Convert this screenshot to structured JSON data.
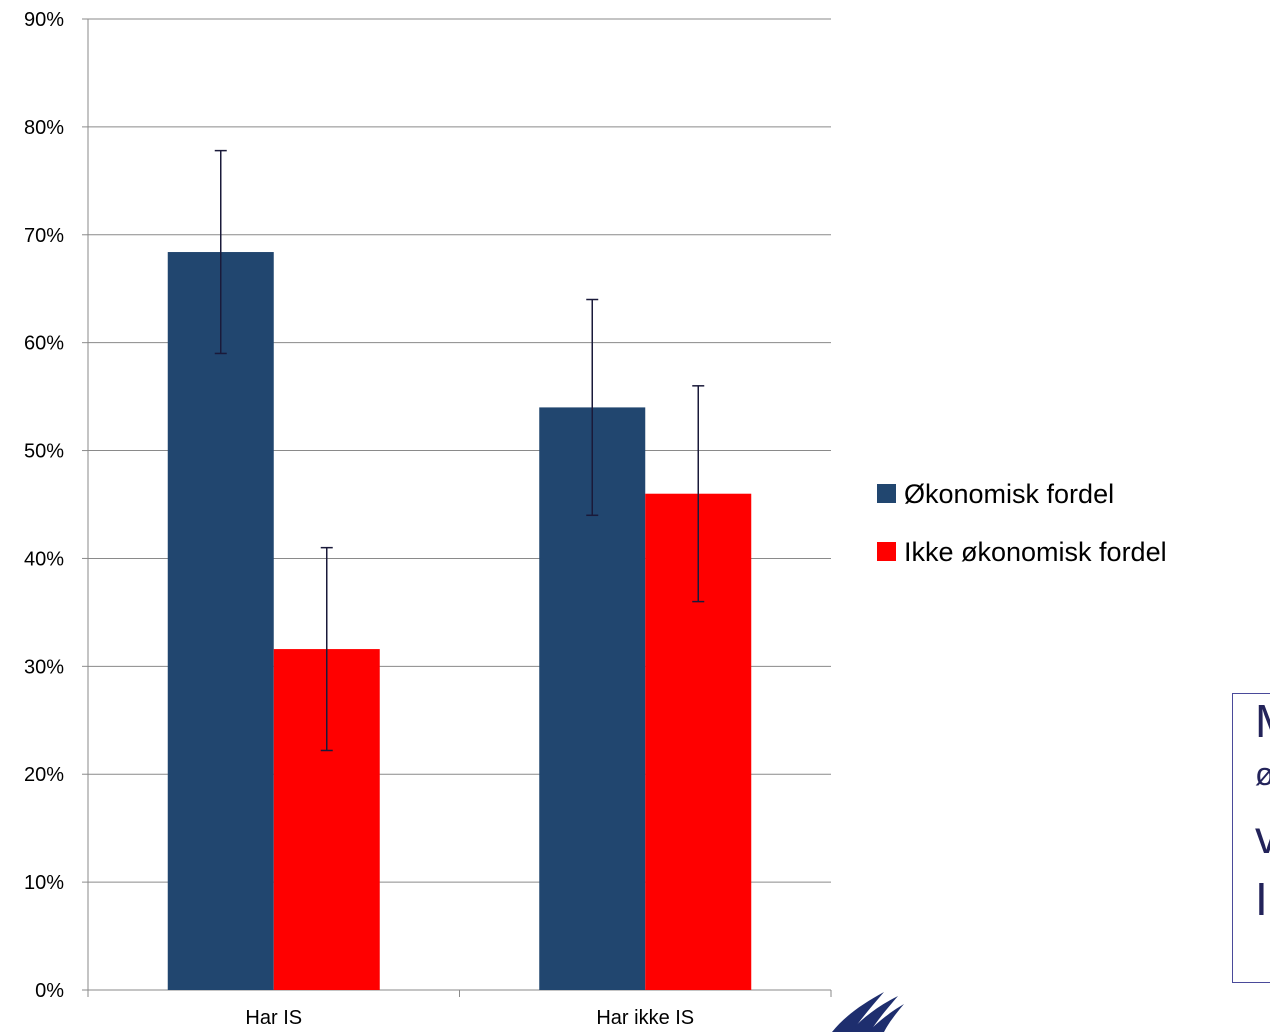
{
  "chart_data": {
    "type": "bar",
    "categories": [
      "Har IS",
      "Har ikke IS"
    ],
    "series": [
      {
        "name": "Økonomisk fordel",
        "color": "#21466f",
        "values": [
          68.4,
          54.0
        ],
        "error_low": [
          59.0,
          44.0
        ],
        "error_high": [
          77.8,
          64.0
        ]
      },
      {
        "name": "Ikke økonomisk fordel",
        "color": "#ff0000",
        "values": [
          31.6,
          46.0
        ],
        "error_low": [
          22.2,
          36.0
        ],
        "error_high": [
          41.0,
          56.0
        ]
      }
    ],
    "ylim": [
      0,
      90
    ],
    "y_ticks": [
      0,
      10,
      20,
      30,
      40,
      50,
      60,
      70,
      80,
      90
    ],
    "y_tick_labels": [
      "0%",
      "10%",
      "20%",
      "30%",
      "40%",
      "50%",
      "60%",
      "70%",
      "80%",
      "90%"
    ],
    "grid": true,
    "legend_position": "right",
    "title": "",
    "xlabel": "",
    "ylabel": ""
  },
  "note": {
    "lines": [
      "M",
      "ø",
      "v",
      "I"
    ]
  },
  "logo_icon": "feather-logo-icon"
}
